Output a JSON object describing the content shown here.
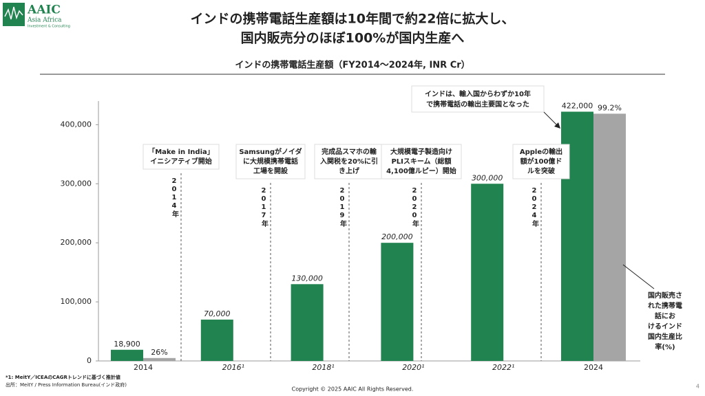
{
  "header": {
    "logo": "AAIC",
    "logo_sub1": "Asia Africa",
    "logo_sub2": "Investment & Consulting",
    "title_lines": [
      "インドの携帯電話生産額は10年間で約22倍に拡大し、",
      "国内販売分のほぼ100%が国内生産へ"
    ]
  },
  "chart_data": {
    "type": "bar",
    "title": "インドの携帯電話生産額（FY2014～2024年, INR Cr）",
    "categories": [
      "2014",
      "2016¹",
      "2018¹",
      "2020¹",
      "2022¹",
      "2024"
    ],
    "series": [
      {
        "color": "#21834f",
        "values": [
          18900,
          70000,
          130000,
          200000,
          300000,
          422000
        ],
        "value_labels": [
          "18,900",
          "70,000",
          "130,000",
          "200,000",
          "300,000",
          "422,000"
        ]
      },
      {
        "name": "国内販売された携帯電話におけるインド国内生産比率(%)",
        "color": "#a5a5a5",
        "values": [
          4900,
          null,
          null,
          null,
          null,
          418600
        ]
      }
    ],
    "share_labels": [
      "26%",
      null,
      null,
      null,
      null,
      "99.2%"
    ],
    "ylim": [
      0,
      440000
    ],
    "yticks": [
      0,
      {
        "value": 100000,
        "label": "100,000"
      },
      {
        "value": 200000,
        "label": "200,000"
      },
      {
        "value": 300000,
        "label": "300,000"
      },
      {
        "value": 400000,
        "label": "400,000"
      }
    ],
    "events": [
      {
        "lines": [
          "「Make in India」",
          "イニシアティブ開始"
        ],
        "year": "2014年"
      },
      {
        "lines": [
          "Samsungがノイダ",
          "に大規模携帯電話",
          "工場を開設"
        ],
        "year": "2017年"
      },
      {
        "lines": [
          "完成品スマホの輸",
          "入関税を20%に引",
          "き上げ"
        ],
        "year": "2019年"
      },
      {
        "lines": [
          "大規模電子製造向け",
          "PLIスキーム（総額",
          "4,100億ルピー）開始"
        ],
        "year": "2020年"
      },
      {
        "lines": [
          "Appleの輸出",
          "額が100億ド",
          "ルを突破"
        ],
        "year": "2024年"
      }
    ],
    "callout": [
      "インドは、輸入国からわずか10年",
      "で携帯電話の輸出主要国となった"
    ]
  },
  "footer": {
    "note": "*1: MeitY／ICEAのCAGRトレンドに基づく推計値",
    "source": "出所：MeitY / Press Information Bureau(インド政府)",
    "copyright": "Copyright © 2025 AAIC All Rights Reserved.",
    "page": "4"
  }
}
